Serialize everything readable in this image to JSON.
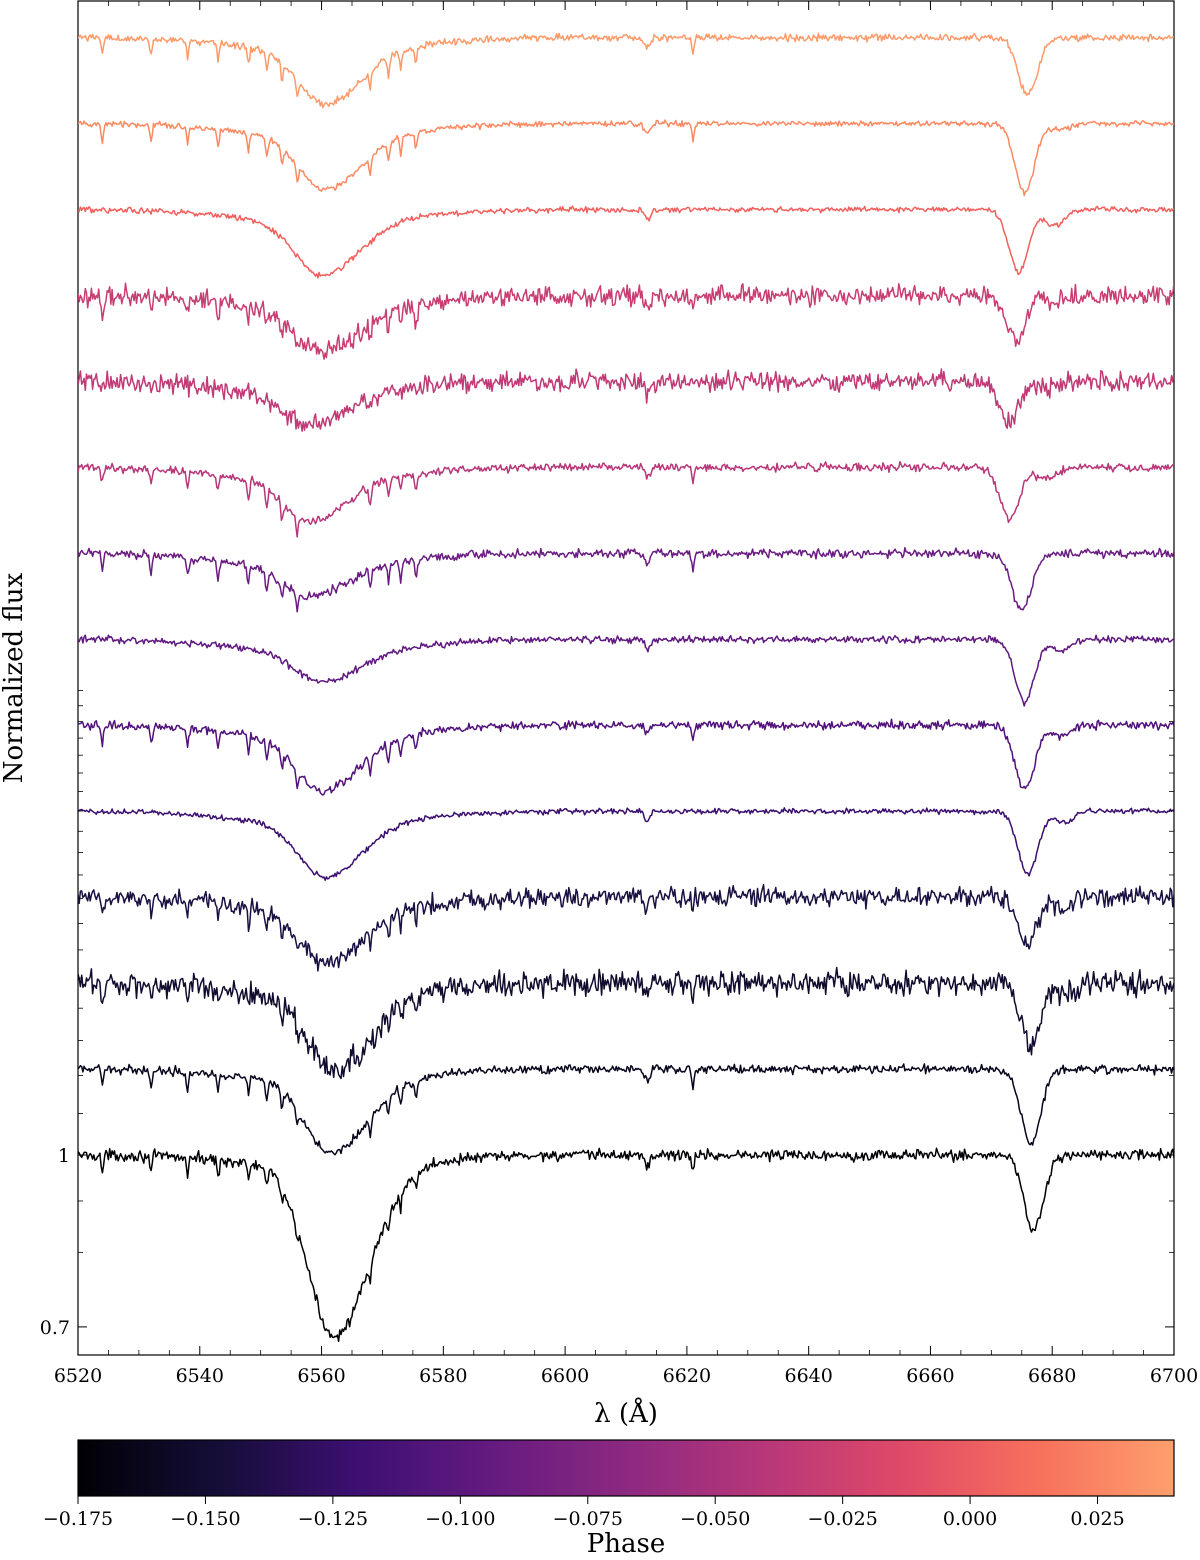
{
  "chart_data": {
    "type": "line",
    "title": "",
    "xlabel": "λ (Å)",
    "ylabel": "Normalized flux",
    "xlim": [
      6520,
      6700
    ],
    "xticks": [
      6520,
      6540,
      6560,
      6580,
      6600,
      6620,
      6640,
      6660,
      6680,
      6700
    ],
    "x_tick_labels": [
      "6520",
      "6540",
      "6560",
      "6580",
      "6600",
      "6620",
      "6640",
      "6660",
      "6680",
      "6700"
    ],
    "ylim": [
      0.65,
      3.0
    ],
    "y_tick_labels": [
      {
        "value": 1.0,
        "label": "1"
      },
      {
        "value": 0.7,
        "label": "0.7"
      }
    ],
    "grid": false,
    "legend": "none",
    "spectra_offset_step": 0.15,
    "spectra": [
      {
        "phase": -0.175,
        "offset": 0.0,
        "color": "#000004",
        "noise": 0.008,
        "h_alpha_center": 6562.0,
        "h_alpha_depth": 0.29,
        "he_center": 6677.0,
        "he_depth": 0.13,
        "he_aux": 0.0,
        "narrow_lines": true
      },
      {
        "phase": -0.165,
        "offset": 0.15,
        "color": "#07061c",
        "noise": 0.006,
        "h_alpha_center": 6561.5,
        "h_alpha_depth": 0.12,
        "he_center": 6676.5,
        "he_depth": 0.13,
        "he_aux": 0.0,
        "narrow_lines": true
      },
      {
        "phase": -0.155,
        "offset": 0.3,
        "color": "#110c2e",
        "noise": 0.018,
        "h_alpha_center": 6562.0,
        "h_alpha_depth": 0.13,
        "he_center": 6676.5,
        "he_depth": 0.11,
        "he_aux": 0.02,
        "narrow_lines": true
      },
      {
        "phase": -0.145,
        "offset": 0.45,
        "color": "#1a1042",
        "noise": 0.014,
        "h_alpha_center": 6561.0,
        "h_alpha_depth": 0.09,
        "he_center": 6676.0,
        "he_depth": 0.08,
        "he_aux": 0.02,
        "narrow_lines": true
      },
      {
        "phase": -0.13,
        "offset": 0.6,
        "color": "#3b0f70",
        "noise": 0.004,
        "h_alpha_center": 6560.5,
        "h_alpha_depth": 0.09,
        "he_center": 6676.0,
        "he_depth": 0.11,
        "he_aux": 0.02,
        "narrow_lines": false
      },
      {
        "phase": -0.118,
        "offset": 0.75,
        "color": "#51127c",
        "noise": 0.006,
        "h_alpha_center": 6560.0,
        "h_alpha_depth": 0.09,
        "he_center": 6675.5,
        "he_depth": 0.11,
        "he_aux": 0.02,
        "narrow_lines": true
      },
      {
        "phase": -0.108,
        "offset": 0.9,
        "color": "#5f187f",
        "noise": 0.005,
        "h_alpha_center": 6560.0,
        "h_alpha_depth": 0.05,
        "he_center": 6675.5,
        "he_depth": 0.11,
        "he_aux": 0.02,
        "narrow_lines": false
      },
      {
        "phase": -0.098,
        "offset": 1.05,
        "color": "#6a1c81",
        "noise": 0.006,
        "h_alpha_center": 6558.0,
        "h_alpha_depth": 0.05,
        "he_center": 6675.0,
        "he_depth": 0.1,
        "he_aux": 0.0,
        "narrow_lines": true
      },
      {
        "phase": -0.062,
        "offset": 1.2,
        "color": "#b73779",
        "noise": 0.006,
        "h_alpha_center": 6558.0,
        "h_alpha_depth": 0.07,
        "he_center": 6673.0,
        "he_depth": 0.09,
        "he_aux": 0.02,
        "narrow_lines": true
      },
      {
        "phase": -0.058,
        "offset": 1.35,
        "color": "#c03a76",
        "noise": 0.014,
        "h_alpha_center": 6558.0,
        "h_alpha_depth": 0.05,
        "he_center": 6673.0,
        "he_depth": 0.07,
        "he_aux": 0.01,
        "narrow_lines": false
      },
      {
        "phase": -0.054,
        "offset": 1.5,
        "color": "#c83e73",
        "noise": 0.014,
        "h_alpha_center": 6560.0,
        "h_alpha_depth": 0.07,
        "he_center": 6674.0,
        "he_depth": 0.08,
        "he_aux": 0.01,
        "narrow_lines": true
      },
      {
        "phase": -0.012,
        "offset": 1.65,
        "color": "#f1605d",
        "noise": 0.004,
        "h_alpha_center": 6560.0,
        "h_alpha_depth": 0.09,
        "he_center": 6674.5,
        "he_depth": 0.11,
        "he_aux": 0.03,
        "narrow_lines": false
      },
      {
        "phase": 0.02,
        "offset": 1.8,
        "color": "#fc8961",
        "noise": 0.004,
        "h_alpha_center": 6560.5,
        "h_alpha_depth": 0.09,
        "he_center": 6675.5,
        "he_depth": 0.12,
        "he_aux": 0.01,
        "narrow_lines": true
      },
      {
        "phase": 0.025,
        "offset": 1.95,
        "color": "#fd9a6a",
        "noise": 0.005,
        "h_alpha_center": 6560.5,
        "h_alpha_depth": 0.09,
        "he_center": 6676.0,
        "he_depth": 0.1,
        "he_aux": 0.0,
        "narrow_lines": true
      }
    ],
    "colorbar": {
      "label": "Phase",
      "colormap": "magma",
      "range": [
        -0.175,
        0.04
      ],
      "ticks": [
        -0.175,
        -0.15,
        -0.125,
        -0.1,
        -0.075,
        -0.05,
        -0.025,
        0.0,
        0.025
      ],
      "tick_labels": [
        "−0.175",
        "−0.150",
        "−0.125",
        "−0.100",
        "−0.075",
        "−0.050",
        "−0.025",
        "0.000",
        "0.025"
      ],
      "stops": [
        "#000004",
        "#140e36",
        "#3b0f70",
        "#641a80",
        "#8c2981",
        "#b73779",
        "#de4968",
        "#f7705c",
        "#fe9f6d"
      ]
    }
  }
}
